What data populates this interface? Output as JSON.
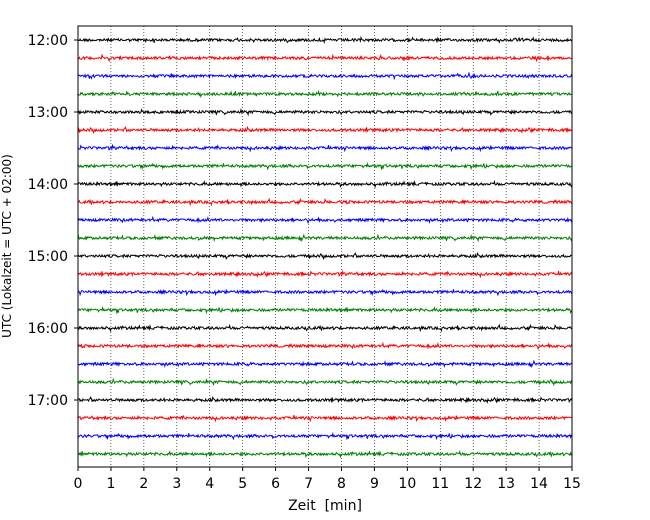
{
  "chart_data": {
    "type": "line",
    "title": "",
    "xlabel": "Zeit  [min]",
    "ylabel": "UTC (Lokalzeit = UTC + 02:00)",
    "xlim": [
      0,
      15
    ],
    "x_ticks": [
      0,
      1,
      2,
      3,
      4,
      5,
      6,
      7,
      8,
      9,
      10,
      11,
      12,
      13,
      14,
      15
    ],
    "x_tick_labels": [
      "0",
      "1",
      "2",
      "3",
      "4",
      "5",
      "6",
      "7",
      "8",
      "9",
      "10",
      "11",
      "12",
      "13",
      "14",
      "15"
    ],
    "y_tick_labels": [
      "12:00",
      "13:00",
      "14:00",
      "15:00",
      "16:00",
      "17:00"
    ],
    "trace_interval_min": 15,
    "trace_start": "12:00",
    "trace_count": 24,
    "trace_colors": [
      "#000000",
      "#ff0000",
      "#0000ff",
      "#008000"
    ],
    "grid": "vertical dotted",
    "series": [
      {
        "start": "12:00",
        "color": "#000000"
      },
      {
        "start": "12:15",
        "color": "#ff0000"
      },
      {
        "start": "12:30",
        "color": "#0000ff"
      },
      {
        "start": "12:45",
        "color": "#008000"
      },
      {
        "start": "13:00",
        "color": "#000000"
      },
      {
        "start": "13:15",
        "color": "#ff0000"
      },
      {
        "start": "13:30",
        "color": "#0000ff"
      },
      {
        "start": "13:45",
        "color": "#008000"
      },
      {
        "start": "14:00",
        "color": "#000000"
      },
      {
        "start": "14:15",
        "color": "#ff0000"
      },
      {
        "start": "14:30",
        "color": "#0000ff"
      },
      {
        "start": "14:45",
        "color": "#008000"
      },
      {
        "start": "15:00",
        "color": "#000000"
      },
      {
        "start": "15:15",
        "color": "#ff0000"
      },
      {
        "start": "15:30",
        "color": "#0000ff"
      },
      {
        "start": "15:45",
        "color": "#008000"
      },
      {
        "start": "16:00",
        "color": "#000000"
      },
      {
        "start": "16:15",
        "color": "#ff0000"
      },
      {
        "start": "16:30",
        "color": "#0000ff"
      },
      {
        "start": "16:45",
        "color": "#008000"
      },
      {
        "start": "17:00",
        "color": "#000000"
      },
      {
        "start": "17:15",
        "color": "#ff0000"
      },
      {
        "start": "17:30",
        "color": "#0000ff"
      },
      {
        "start": "17:45",
        "color": "#008000"
      }
    ]
  }
}
